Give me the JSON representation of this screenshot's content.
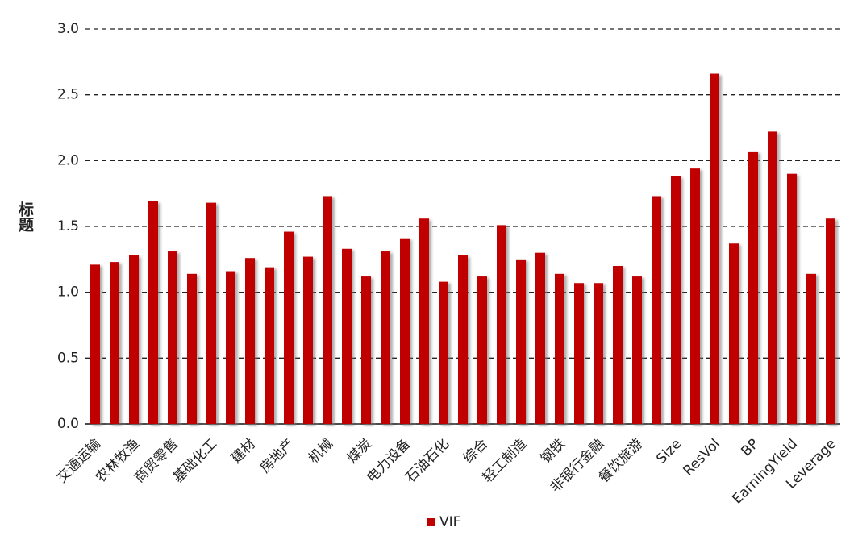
{
  "chart_data": {
    "type": "bar",
    "y_label": "标题",
    "categories": [
      "交通运输",
      null,
      "农林牧渔",
      null,
      "商贸零售",
      null,
      "基础化工",
      null,
      "建材",
      null,
      "房地产",
      null,
      "机械",
      null,
      "煤炭",
      null,
      "电力设备",
      null,
      "石油石化",
      null,
      "综合",
      null,
      "轻工制造",
      null,
      "钢铁",
      null,
      "非银行金融",
      null,
      "餐饮旅游",
      null,
      "Size",
      null,
      "ResVol",
      null,
      "BP",
      null,
      "EarningYield",
      null,
      "Leverage"
    ],
    "series": [
      {
        "name": "VIF",
        "color": "#c00000",
        "values": [
          1.21,
          1.23,
          1.28,
          1.69,
          1.31,
          1.14,
          1.68,
          1.16,
          1.26,
          1.19,
          1.46,
          1.27,
          1.73,
          1.33,
          1.12,
          1.31,
          1.41,
          1.56,
          1.08,
          1.28,
          1.12,
          1.51,
          1.25,
          1.3,
          1.14,
          1.07,
          1.07,
          1.2,
          1.12,
          1.73,
          1.88,
          1.94,
          2.66,
          1.37,
          2.07,
          2.22,
          1.9,
          1.14,
          1.56
        ]
      }
    ],
    "ylim": [
      0,
      3
    ],
    "yticks": [
      {
        "value": 0,
        "label": "0.0"
      },
      {
        "value": 0.5,
        "label": "0.5"
      },
      {
        "value": 1,
        "label": "1.0"
      },
      {
        "value": 1.5,
        "label": "1.5"
      },
      {
        "value": 2,
        "label": "2.0"
      },
      {
        "value": 2.5,
        "label": "2.5"
      },
      {
        "value": 3,
        "label": "3.0"
      }
    ],
    "grid": true,
    "legend": "bottom"
  }
}
